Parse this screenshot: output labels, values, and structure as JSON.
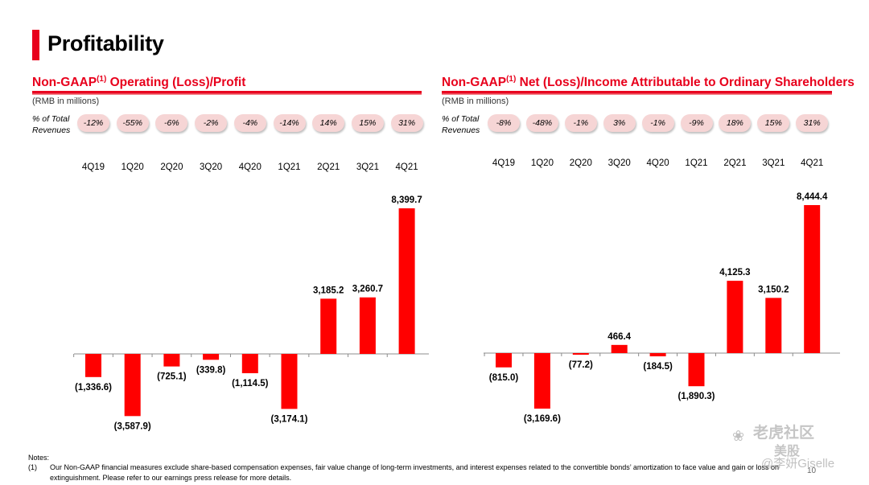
{
  "page": {
    "title": "Profitability",
    "page_number": "10",
    "watermark_line1": "老虎社区",
    "watermark_line2": "@李妍Giselle",
    "watermark_mid": "美股"
  },
  "left": {
    "title_main": "Non-GAAP",
    "title_sup": "(1)",
    "title_rest": " Operating (Loss)/Profit",
    "unit": "(RMB in millions)",
    "pct_label_line1": "% of Total",
    "pct_label_line2": "Revenues",
    "pct": [
      "-12%",
      "-55%",
      "-6%",
      "-2%",
      "-4%",
      "-14%",
      "14%",
      "15%",
      "31%"
    ]
  },
  "right": {
    "title_main": "Non-GAAP",
    "title_sup": "(1)",
    "title_rest": " Net (Loss)/Income Attributable to Ordinary Shareholders",
    "unit": "(RMB in millions)",
    "pct_label_line1": "% of Total",
    "pct_label_line2": "Revenues",
    "pct": [
      "-8%",
      "-48%",
      "-1%",
      "3%",
      "-1%",
      "-9%",
      "18%",
      "15%",
      "31%"
    ]
  },
  "notes": {
    "heading": "Notes:",
    "num": "(1)",
    "text": "Our Non-GAAP financial measures exclude share-based compensation expenses, fair value change of long-term investments, and interest expenses related to the convertible bonds’ amortization to face value and gain or loss on extinguishment. Please refer to our earnings press release for more details."
  },
  "colors": {
    "accent": "#e8001c",
    "bar": "#ff0000",
    "pill": "#f6d5d5"
  },
  "chart_data": [
    {
      "type": "bar",
      "title": "Non-GAAP(1) Operating (Loss)/Profit",
      "categories": [
        "4Q19",
        "1Q20",
        "2Q20",
        "3Q20",
        "4Q20",
        "1Q21",
        "2Q21",
        "3Q21",
        "4Q21"
      ],
      "values": [
        -1336.6,
        -3587.9,
        -725.1,
        -339.8,
        -1114.5,
        -3174.1,
        3185.2,
        3260.7,
        8399.7
      ],
      "labels": [
        "(1,336.6)",
        "(3,587.9)",
        "(725.1)",
        "(339.8)",
        "(1,114.5)",
        "(3,174.1)",
        "3,185.2",
        "3,260.7",
        "8,399.7"
      ],
      "xlabel": "",
      "ylabel": "",
      "unit": "RMB in millions",
      "pct_of_total_revenues": [
        "-12%",
        "-55%",
        "-6%",
        "-2%",
        "-4%",
        "-14%",
        "14%",
        "15%",
        "31%"
      ],
      "grid": false
    },
    {
      "type": "bar",
      "title": "Non-GAAP(1) Net (Loss)/Income Attributable to Ordinary Shareholders",
      "categories": [
        "4Q19",
        "1Q20",
        "2Q20",
        "3Q20",
        "4Q20",
        "1Q21",
        "2Q21",
        "3Q21",
        "4Q21"
      ],
      "values": [
        -815.0,
        -3169.6,
        -77.2,
        466.4,
        -184.5,
        -1890.3,
        4125.3,
        3150.2,
        8444.4
      ],
      "labels": [
        "(815.0)",
        "(3,169.6)",
        "(77.2)",
        "466.4",
        "(184.5)",
        "(1,890.3)",
        "4,125.3",
        "3,150.2",
        "8,444.4"
      ],
      "xlabel": "",
      "ylabel": "",
      "unit": "RMB in millions",
      "pct_of_total_revenues": [
        "-8%",
        "-48%",
        "-1%",
        "3%",
        "-1%",
        "-9%",
        "18%",
        "15%",
        "31%"
      ],
      "grid": false
    }
  ]
}
